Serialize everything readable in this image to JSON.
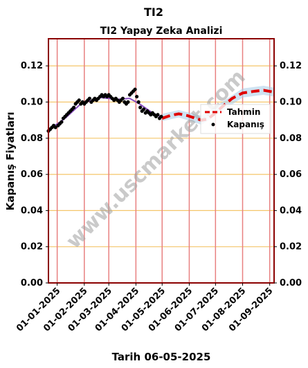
{
  "chart_data": {
    "type": "line",
    "title": "TI2",
    "subtitle": "TI2 Yapay Zeka Analizi",
    "xlabel": "Tarih 06-05-2025",
    "ylabel": "Kapanış Fiyatları",
    "ylim": [
      0,
      0.135
    ],
    "y_ticks": [
      "0.00",
      "0.02",
      "0.04",
      "0.06",
      "0.08",
      "0.10",
      "0.12"
    ],
    "x_ticks": [
      "01-01-2025",
      "01-02-2025",
      "01-03-2025",
      "01-04-2025",
      "01-05-2025",
      "01-06-2025",
      "01-07-2025",
      "01-08-2025",
      "01-09-2025"
    ],
    "xlim": [
      "2024-12-22",
      "2025-09-06"
    ],
    "grid": true,
    "legend_position": "right",
    "watermark": "www.uscmarket.com",
    "colors": {
      "frame": "#8b0000",
      "hgrid": "#f5c56a",
      "vgrid": "#e88080",
      "closing": "#000000",
      "forecast": "#e00000",
      "fit_line": "#8a4fc0",
      "band": "#a8cce8"
    },
    "series": [
      {
        "name": "Kapanış",
        "style": "points",
        "points": [
          [
            "2024-12-22",
            0.084
          ],
          [
            "2024-12-24",
            0.085
          ],
          [
            "2024-12-26",
            0.086
          ],
          [
            "2024-12-28",
            0.087
          ],
          [
            "2024-12-30",
            0.086
          ],
          [
            "2025-01-02",
            0.087
          ],
          [
            "2025-01-04",
            0.088
          ],
          [
            "2025-01-06",
            0.089
          ],
          [
            "2025-01-08",
            0.091
          ],
          [
            "2025-01-10",
            0.092
          ],
          [
            "2025-01-12",
            0.093
          ],
          [
            "2025-01-14",
            0.094
          ],
          [
            "2025-01-16",
            0.095
          ],
          [
            "2025-01-18",
            0.096
          ],
          [
            "2025-01-20",
            0.097
          ],
          [
            "2025-01-22",
            0.099
          ],
          [
            "2025-01-24",
            0.1
          ],
          [
            "2025-01-26",
            0.101
          ],
          [
            "2025-01-28",
            0.099
          ],
          [
            "2025-01-30",
            0.1
          ],
          [
            "2025-02-01",
            0.099
          ],
          [
            "2025-02-03",
            0.1
          ],
          [
            "2025-02-05",
            0.101
          ],
          [
            "2025-02-07",
            0.102
          ],
          [
            "2025-02-09",
            0.1
          ],
          [
            "2025-02-11",
            0.101
          ],
          [
            "2025-02-13",
            0.102
          ],
          [
            "2025-02-15",
            0.101
          ],
          [
            "2025-02-17",
            0.102
          ],
          [
            "2025-02-19",
            0.103
          ],
          [
            "2025-02-21",
            0.104
          ],
          [
            "2025-02-23",
            0.103
          ],
          [
            "2025-02-25",
            0.104
          ],
          [
            "2025-02-27",
            0.103
          ],
          [
            "2025-03-01",
            0.104
          ],
          [
            "2025-03-03",
            0.103
          ],
          [
            "2025-03-05",
            0.102
          ],
          [
            "2025-03-07",
            0.101
          ],
          [
            "2025-03-09",
            0.102
          ],
          [
            "2025-03-11",
            0.101
          ],
          [
            "2025-03-13",
            0.1
          ],
          [
            "2025-03-15",
            0.101
          ],
          [
            "2025-03-17",
            0.102
          ],
          [
            "2025-03-19",
            0.1
          ],
          [
            "2025-03-21",
            0.099
          ],
          [
            "2025-03-23",
            0.1
          ],
          [
            "2025-03-25",
            0.104
          ],
          [
            "2025-03-27",
            0.105
          ],
          [
            "2025-03-29",
            0.106
          ],
          [
            "2025-03-31",
            0.107
          ],
          [
            "2025-04-02",
            0.103
          ],
          [
            "2025-04-04",
            0.1
          ],
          [
            "2025-04-06",
            0.097
          ],
          [
            "2025-04-08",
            0.095
          ],
          [
            "2025-04-10",
            0.096
          ],
          [
            "2025-04-12",
            0.094
          ],
          [
            "2025-04-14",
            0.095
          ],
          [
            "2025-04-16",
            0.094
          ],
          [
            "2025-04-18",
            0.093
          ],
          [
            "2025-04-20",
            0.094
          ],
          [
            "2025-04-22",
            0.093
          ],
          [
            "2025-04-24",
            0.092
          ],
          [
            "2025-04-26",
            0.093
          ],
          [
            "2025-04-28",
            0.091
          ],
          [
            "2025-04-30",
            0.092
          ]
        ]
      },
      {
        "name": "Tahmin",
        "style": "dashed",
        "points": [
          [
            "2025-05-01",
            0.091
          ],
          [
            "2025-05-10",
            0.0925
          ],
          [
            "2025-05-20",
            0.0935
          ],
          [
            "2025-05-30",
            0.0925
          ],
          [
            "2025-06-08",
            0.091
          ],
          [
            "2025-06-15",
            0.09
          ],
          [
            "2025-06-22",
            0.0905
          ],
          [
            "2025-07-01",
            0.094
          ],
          [
            "2025-07-10",
            0.098
          ],
          [
            "2025-07-20",
            0.102
          ],
          [
            "2025-08-01",
            0.105
          ],
          [
            "2025-08-15",
            0.106
          ],
          [
            "2025-08-25",
            0.1065
          ],
          [
            "2025-09-06",
            0.1055
          ]
        ]
      }
    ],
    "fit_line": [
      [
        "2024-12-22",
        0.0845
      ],
      [
        "2025-01-10",
        0.091
      ],
      [
        "2025-01-28",
        0.099
      ],
      [
        "2025-02-20",
        0.1025
      ],
      [
        "2025-03-10",
        0.1015
      ],
      [
        "2025-03-25",
        0.102
      ],
      [
        "2025-04-05",
        0.099
      ],
      [
        "2025-04-20",
        0.094
      ],
      [
        "2025-05-01",
        0.0915
      ]
    ],
    "band": {
      "upper": [
        [
          "2025-05-01",
          0.0935
        ],
        [
          "2025-05-20",
          0.0955
        ],
        [
          "2025-06-15",
          0.0925
        ],
        [
          "2025-07-10",
          0.1005
        ],
        [
          "2025-08-01",
          0.1075
        ],
        [
          "2025-08-25",
          0.109
        ],
        [
          "2025-09-06",
          0.108
        ]
      ],
      "lower": [
        [
          "2025-05-01",
          0.0895
        ],
        [
          "2025-05-20",
          0.0915
        ],
        [
          "2025-06-15",
          0.0875
        ],
        [
          "2025-07-10",
          0.0955
        ],
        [
          "2025-08-01",
          0.1025
        ],
        [
          "2025-08-25",
          0.104
        ],
        [
          "2025-09-06",
          0.103
        ]
      ]
    },
    "legend": [
      "Tahmin",
      "Kapanış"
    ]
  }
}
